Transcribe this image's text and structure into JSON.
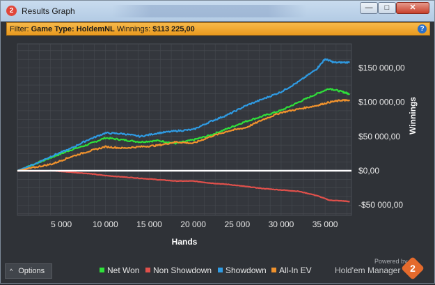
{
  "window": {
    "app_logo": "2",
    "title": "Results Graph",
    "minimize_icon": "minimize-icon",
    "maximize_icon": "maximize-icon",
    "close_icon": "close-icon",
    "min_glyph": "—",
    "max_glyph": "□",
    "close_glyph": "✕"
  },
  "filter": {
    "prefix": "Filter:",
    "game_type_label": "Game Type: HoldemNL",
    "winnings_label": "Winnings:",
    "winnings_value": "$113 225,00",
    "help_glyph": "?"
  },
  "options": {
    "label": "Options",
    "chevron": "^"
  },
  "branding": {
    "powered_by": "Powered by",
    "name": "Hold'em Manager",
    "logo": "2"
  },
  "colors": {
    "net_won": "#2fe03a",
    "non_showdown": "#e0504b",
    "showdown": "#2f9be3",
    "all_in_ev": "#f0922d",
    "zero_line": "#ffffff",
    "grid": "#474b51",
    "filter_bar": "#f0a632"
  },
  "chart_data": {
    "type": "line",
    "xlabel": "Hands",
    "ylabel": "Winnings",
    "xlim": [
      0,
      38000
    ],
    "ylim": [
      -65000,
      185000
    ],
    "x_ticks": [
      5000,
      10000,
      15000,
      20000,
      25000,
      30000,
      35000
    ],
    "x_tick_labels": [
      "5 000",
      "10 000",
      "15 000",
      "20 000",
      "25 000",
      "30 000",
      "35 000"
    ],
    "y_ticks": [
      150000,
      100000,
      50000,
      0,
      -50000
    ],
    "y_tick_labels": [
      "$150 000,00",
      "$100 000,00",
      "$50 000,00",
      "$0,00",
      "-$50 000,00"
    ],
    "grid": true,
    "legend_position": "bottom",
    "series": [
      {
        "name": "Net Won",
        "color_key": "net_won",
        "points": [
          [
            0,
            0
          ],
          [
            2000,
            10000
          ],
          [
            4000,
            20000
          ],
          [
            6000,
            30000
          ],
          [
            8000,
            38000
          ],
          [
            10000,
            48000
          ],
          [
            12000,
            45000
          ],
          [
            14000,
            42000
          ],
          [
            16000,
            44000
          ],
          [
            18000,
            40000
          ],
          [
            20000,
            45000
          ],
          [
            22000,
            52000
          ],
          [
            24000,
            62000
          ],
          [
            26000,
            72000
          ],
          [
            28000,
            80000
          ],
          [
            30000,
            88000
          ],
          [
            32000,
            100000
          ],
          [
            34000,
            112000
          ],
          [
            35500,
            120000
          ],
          [
            37000,
            115000
          ],
          [
            37800,
            112000
          ]
        ]
      },
      {
        "name": "Non Showdown",
        "color_key": "non_showdown",
        "points": [
          [
            0,
            0
          ],
          [
            4000,
            0
          ],
          [
            6000,
            -2000
          ],
          [
            8000,
            -4000
          ],
          [
            10000,
            -7000
          ],
          [
            12000,
            -9000
          ],
          [
            14000,
            -11000
          ],
          [
            16000,
            -13000
          ],
          [
            18000,
            -15000
          ],
          [
            20000,
            -15000
          ],
          [
            22000,
            -18000
          ],
          [
            24000,
            -20000
          ],
          [
            26000,
            -23000
          ],
          [
            28000,
            -26000
          ],
          [
            30000,
            -28000
          ],
          [
            32000,
            -30000
          ],
          [
            34000,
            -36000
          ],
          [
            35500,
            -43000
          ],
          [
            37000,
            -44000
          ],
          [
            37800,
            -45000
          ]
        ]
      },
      {
        "name": "Showdown",
        "color_key": "showdown",
        "points": [
          [
            0,
            0
          ],
          [
            2000,
            10000
          ],
          [
            4000,
            22000
          ],
          [
            6000,
            32000
          ],
          [
            8000,
            45000
          ],
          [
            10000,
            55000
          ],
          [
            12000,
            54000
          ],
          [
            14000,
            50000
          ],
          [
            16000,
            55000
          ],
          [
            18000,
            58000
          ],
          [
            20000,
            60000
          ],
          [
            22000,
            72000
          ],
          [
            24000,
            82000
          ],
          [
            26000,
            95000
          ],
          [
            28000,
            105000
          ],
          [
            30000,
            115000
          ],
          [
            32000,
            130000
          ],
          [
            34000,
            148000
          ],
          [
            35000,
            163000
          ],
          [
            36000,
            158000
          ],
          [
            37800,
            158000
          ]
        ]
      },
      {
        "name": "All-In EV",
        "color_key": "all_in_ev",
        "points": [
          [
            0,
            0
          ],
          [
            2000,
            5000
          ],
          [
            4000,
            10000
          ],
          [
            6000,
            20000
          ],
          [
            8000,
            28000
          ],
          [
            10000,
            35000
          ],
          [
            12000,
            33000
          ],
          [
            14000,
            35000
          ],
          [
            16000,
            37000
          ],
          [
            18000,
            42000
          ],
          [
            20000,
            40000
          ],
          [
            22000,
            50000
          ],
          [
            24000,
            58000
          ],
          [
            26000,
            63000
          ],
          [
            28000,
            75000
          ],
          [
            30000,
            85000
          ],
          [
            32000,
            90000
          ],
          [
            34000,
            95000
          ],
          [
            35500,
            100000
          ],
          [
            37000,
            103000
          ],
          [
            37800,
            102000
          ]
        ]
      }
    ]
  }
}
